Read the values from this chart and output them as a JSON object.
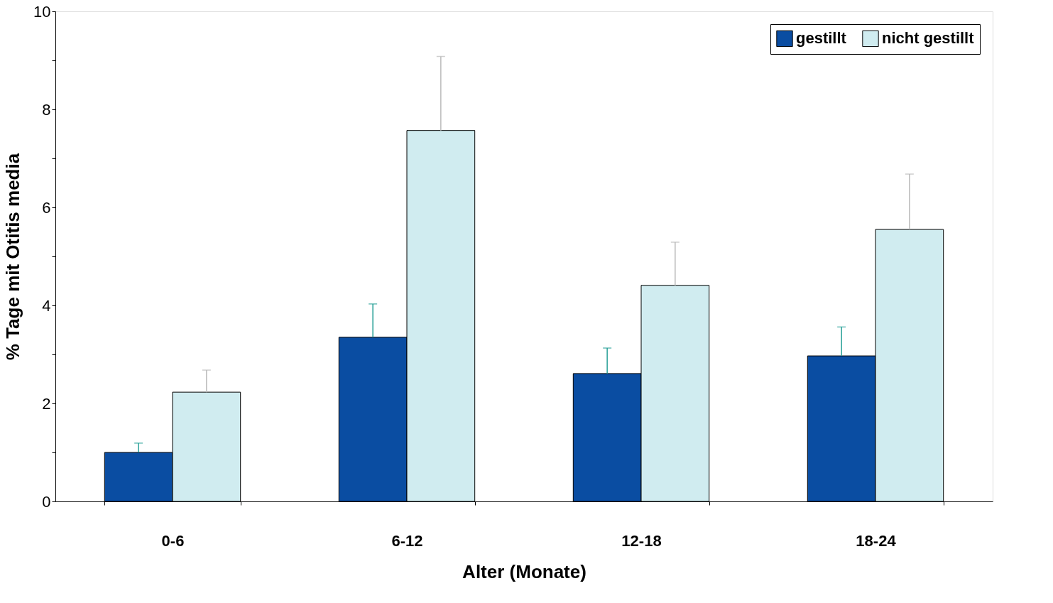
{
  "chart_data": {
    "type": "bar",
    "xlabel": "Alter (Monate)",
    "ylabel": "% Tage mit Otitis media",
    "categories": [
      "0-6",
      "6-12",
      "12-18",
      "18-24"
    ],
    "series": [
      {
        "name": "gestillt",
        "color": "#0a4da2",
        "values": [
          1.0,
          3.35,
          2.61,
          2.97
        ],
        "errors": [
          [
            1.0,
            1.19
          ],
          [
            3.35,
            4.03
          ],
          [
            2.61,
            3.13
          ],
          [
            2.97,
            3.56
          ]
        ]
      },
      {
        "name": "nicht gestillt",
        "color": "#d0ecf0",
        "values": [
          2.23,
          7.57,
          4.41,
          5.55
        ],
        "errors": [
          [
            2.23,
            2.68
          ],
          [
            7.57,
            9.08
          ],
          [
            4.41,
            5.29
          ],
          [
            5.55,
            6.68
          ]
        ]
      }
    ],
    "ylim": [
      0,
      10
    ],
    "yticks": [
      0,
      {
        "value": 1,
        "label": null
      },
      2,
      {
        "value": 3,
        "label": null
      },
      4,
      {
        "value": 5,
        "label": null
      },
      6,
      {
        "value": 7,
        "label": null
      },
      8,
      {
        "value": 9,
        "label": null
      },
      10
    ],
    "grid": false,
    "legend": "top right"
  }
}
